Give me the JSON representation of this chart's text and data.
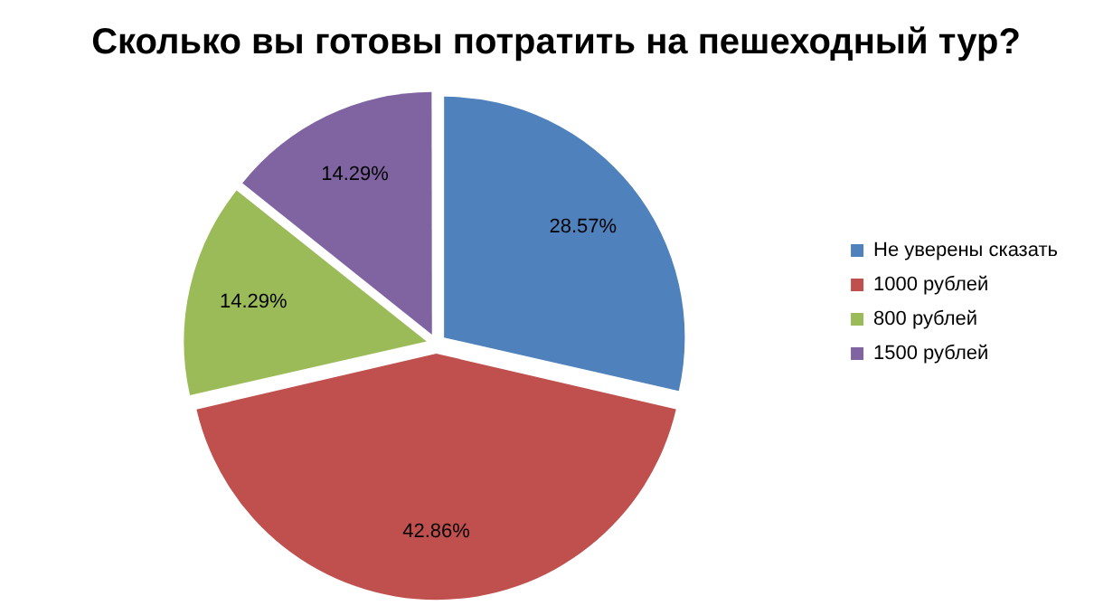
{
  "chart_data": {
    "type": "pie",
    "title": "Сколько вы готовы потратить на пешеходный тур?",
    "categories": [
      "Не уверены сказать",
      "1000 рублей",
      "800 рублей",
      "1500 рублей"
    ],
    "values": [
      28.57,
      42.86,
      14.29,
      14.29
    ],
    "value_labels": [
      "28.57%",
      "42.86%",
      "14.29%",
      "14.29%"
    ],
    "colors": [
      "#4f81bd",
      "#c0504d",
      "#9bbb59",
      "#8064a2"
    ],
    "legend": "right"
  }
}
